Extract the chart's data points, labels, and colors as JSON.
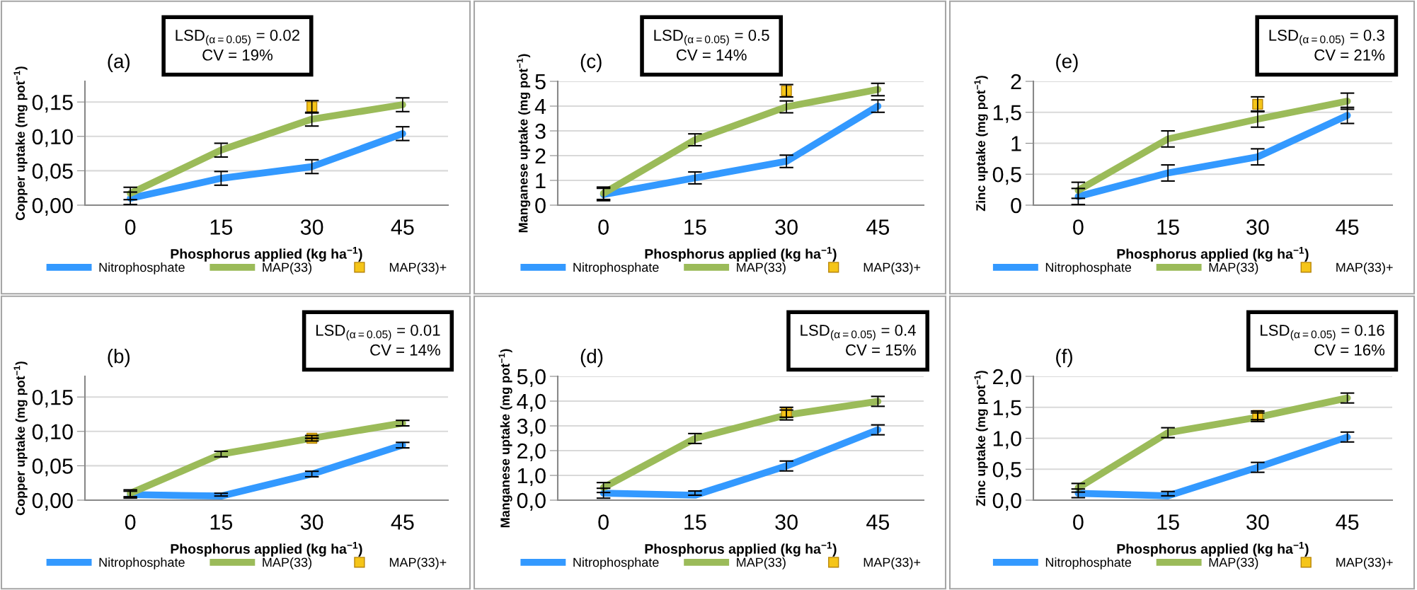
{
  "chart_data": [
    {
      "type": "line",
      "title": "(a)",
      "xlabel": "Phosphorus applied (kg ha$^{−1}$)",
      "ylabel": "Copper uptake (mg pot$^{−1}$)",
      "categories": [
        "0",
        "15",
        "30",
        "45"
      ],
      "ylim": [
        0,
        0.18
      ],
      "yticks": [
        {
          "value": 0,
          "label": "0,00"
        },
        {
          "value": 0.05,
          "label": "0,05"
        },
        {
          "value": 0.1,
          "label": "0,10"
        },
        {
          "value": 0.15,
          "label": "0,15"
        }
      ],
      "grid": "y",
      "legend": "bottom",
      "annotations": [
        "LSD$_{(α=0.05)}$ = 0.02\nCV = 19%"
      ],
      "series": [
        {
          "name": "Nitrophosphate",
          "type": "line",
          "color": "#3399ff",
          "values": [
            0.01,
            0.039,
            0.056,
            0.104
          ],
          "errors": [
            0.009,
            0.01,
            0.01,
            0.01
          ]
        },
        {
          "name": "MAP(33)",
          "type": "line",
          "color": "#9bbb59",
          "values": [
            0.017,
            0.08,
            0.125,
            0.146
          ],
          "errors": [
            0.009,
            0.01,
            0.01,
            0.01
          ]
        },
        {
          "name": "MAP(33)+",
          "type": "scatter",
          "marker": "square",
          "color": "#f5c518",
          "x": [
            "30"
          ],
          "values": [
            0.143
          ],
          "errors": [
            0.009
          ]
        }
      ]
    },
    {
      "type": "line",
      "title": "(c)",
      "xlabel": "Phosphorus applied (kg ha$^{−1}$)",
      "ylabel": "Manganese uptake (mg pot$^{−1}$)",
      "categories": [
        "0",
        "15",
        "30",
        "45"
      ],
      "ylim": [
        0,
        5
      ],
      "yticks": [
        0,
        1,
        2,
        3,
        4,
        5
      ],
      "grid": "y",
      "legend": "bottom",
      "annotations": [
        "LSD$_{(α=0.05)}$ = 0.5\nCV = 14%"
      ],
      "series": [
        {
          "name": "Nitrophosphate",
          "type": "line",
          "color": "#3399ff",
          "values": [
            0.43,
            1.1,
            1.77,
            4.0
          ],
          "errors": [
            0.25,
            0.24,
            0.25,
            0.25
          ]
        },
        {
          "name": "MAP(33)",
          "type": "line",
          "color": "#9bbb59",
          "values": [
            0.48,
            2.64,
            3.97,
            4.67
          ],
          "errors": [
            0.25,
            0.24,
            0.24,
            0.25
          ]
        },
        {
          "name": "MAP(33)+",
          "type": "scatter",
          "marker": "square",
          "color": "#f5c518",
          "x": [
            "30"
          ],
          "values": [
            4.62
          ],
          "errors": [
            0.25
          ]
        }
      ]
    },
    {
      "type": "line",
      "title": "(e)",
      "xlabel": "Phosphorus applied (kg ha$^{−1}$)",
      "ylabel": "Zinc uptake (mg pot$^{−1}$)",
      "categories": [
        "0",
        "15",
        "30",
        "45"
      ],
      "ylim": [
        0,
        2
      ],
      "yticks": [
        0,
        {
          "value": 0.5,
          "label": "0,5"
        },
        1,
        {
          "value": 1.5,
          "label": "1,5"
        },
        2
      ],
      "grid": "y",
      "legend": "bottom",
      "annotations": [
        "LSD$_{(α=0.05)}$ = 0.3\nCV = 21%"
      ],
      "series": [
        {
          "name": "Nitrophosphate",
          "type": "line",
          "color": "#3399ff",
          "values": [
            0.14,
            0.52,
            0.78,
            1.45
          ],
          "errors": [
            0.13,
            0.13,
            0.13,
            0.13
          ]
        },
        {
          "name": "MAP(33)",
          "type": "line",
          "color": "#9bbb59",
          "values": [
            0.24,
            1.07,
            1.39,
            1.68
          ],
          "errors": [
            0.13,
            0.13,
            0.13,
            0.13
          ]
        },
        {
          "name": "MAP(33)+",
          "type": "scatter",
          "marker": "square",
          "color": "#f5c518",
          "x": [
            "30"
          ],
          "values": [
            1.63
          ],
          "errors": [
            0.12
          ]
        }
      ]
    },
    {
      "type": "line",
      "title": "(b)",
      "xlabel": "Phosphorus applied (kg ha$^{−1}$)",
      "ylabel": "Copper uptake (mg pot$^{−1}$)",
      "categories": [
        "0",
        "15",
        "30",
        "45"
      ],
      "ylim": [
        0,
        0.18
      ],
      "yticks": [
        {
          "value": 0,
          "label": "0,00"
        },
        {
          "value": 0.05,
          "label": "0,05"
        },
        {
          "value": 0.1,
          "label": "0,10"
        },
        {
          "value": 0.15,
          "label": "0,15"
        }
      ],
      "grid": "y",
      "legend": "bottom",
      "annotations": [
        "LSD$_{(α=0.05)}$ = 0.01\nCV = 14%"
      ],
      "series": [
        {
          "name": "Nitrophosphate",
          "type": "line",
          "color": "#3399ff",
          "values": [
            0.008,
            0.006,
            0.038,
            0.08
          ],
          "errors": [
            0.005,
            [
              0.006,
              0.01
            ],
            0.004,
            0.004
          ]
        },
        {
          "name": "MAP(33)",
          "type": "line",
          "color": "#9bbb59",
          "values": [
            0.01,
            0.067,
            0.09,
            0.112
          ],
          "errors": [
            0.005,
            0.004,
            null,
            0.004
          ]
        },
        {
          "name": "MAP(33)+",
          "type": "scatter",
          "marker": "square",
          "color": "#f5c518",
          "x": [
            "30"
          ],
          "values": [
            0.09
          ],
          "errors": [
            0.004
          ]
        }
      ]
    },
    {
      "type": "line",
      "title": "(d)",
      "xlabel": "Phosphorus applied (kg ha$^{−1}$)",
      "ylabel": "Manganese uptake (mg pot$^{−1}$)",
      "categories": [
        "0",
        "15",
        "30",
        "45"
      ],
      "ylim": [
        0,
        5
      ],
      "yticks": [
        {
          "value": 0,
          "label": "0,0"
        },
        {
          "value": 1,
          "label": "1,0"
        },
        {
          "value": 2,
          "label": "2,0"
        },
        {
          "value": 3,
          "label": "3,0"
        },
        {
          "value": 4,
          "label": "4,0"
        },
        {
          "value": 5,
          "label": "5,0"
        }
      ],
      "grid": "y",
      "legend": "bottom",
      "annotations": [
        "LSD$_{(α=0.05)}$ = 0.4\nCV = 15%"
      ],
      "series": [
        {
          "name": "Nitrophosphate",
          "type": "line",
          "color": "#3399ff",
          "values": [
            0.28,
            0.2,
            1.38,
            2.84
          ],
          "errors": [
            0.2,
            [
              0.2,
              0.37
            ],
            0.2,
            0.2
          ]
        },
        {
          "name": "MAP(33)",
          "type": "line",
          "color": "#9bbb59",
          "values": [
            0.51,
            2.49,
            3.44,
            3.99
          ],
          "errors": [
            0.2,
            0.2,
            0.2,
            0.2
          ]
        },
        {
          "name": "MAP(33)+",
          "type": "scatter",
          "marker": "square",
          "color": "#f5c518",
          "x": [
            "30"
          ],
          "values": [
            3.55
          ],
          "errors": [
            0.2
          ]
        }
      ]
    },
    {
      "type": "line",
      "title": "(f)",
      "xlabel": "Phosphorus applied (kg ha$^{−1}$)",
      "ylabel": "Zinc uptake (mg pot$^{−1}$)",
      "categories": [
        "0",
        "15",
        "30",
        "45"
      ],
      "ylim": [
        0,
        2
      ],
      "yticks": [
        {
          "value": 0,
          "label": "0,0"
        },
        {
          "value": 0.5,
          "label": "0,5"
        },
        {
          "value": 1,
          "label": "1,0"
        },
        {
          "value": 1.5,
          "label": "1,5"
        },
        {
          "value": 2,
          "label": "2,0"
        }
      ],
      "grid": "y",
      "legend": "bottom",
      "annotations": [
        "LSD$_{(α=0.05)}$ = 0.16\nCV = 16%"
      ],
      "series": [
        {
          "name": "Nitrophosphate",
          "type": "line",
          "color": "#3399ff",
          "values": [
            0.11,
            0.07,
            0.53,
            1.02
          ],
          "errors": [
            0.07,
            [
              0.07,
              0.14
            ],
            0.08,
            0.08
          ]
        },
        {
          "name": "MAP(33)",
          "type": "line",
          "color": "#9bbb59",
          "values": [
            0.2,
            1.09,
            1.34,
            1.65
          ],
          "errors": [
            0.07,
            0.08,
            0.07,
            0.08
          ]
        },
        {
          "name": "MAP(33)+",
          "type": "scatter",
          "marker": "square",
          "color": "#f5c518",
          "x": [
            "30"
          ],
          "values": [
            1.37
          ],
          "errors": [
            0.07
          ]
        }
      ]
    }
  ]
}
